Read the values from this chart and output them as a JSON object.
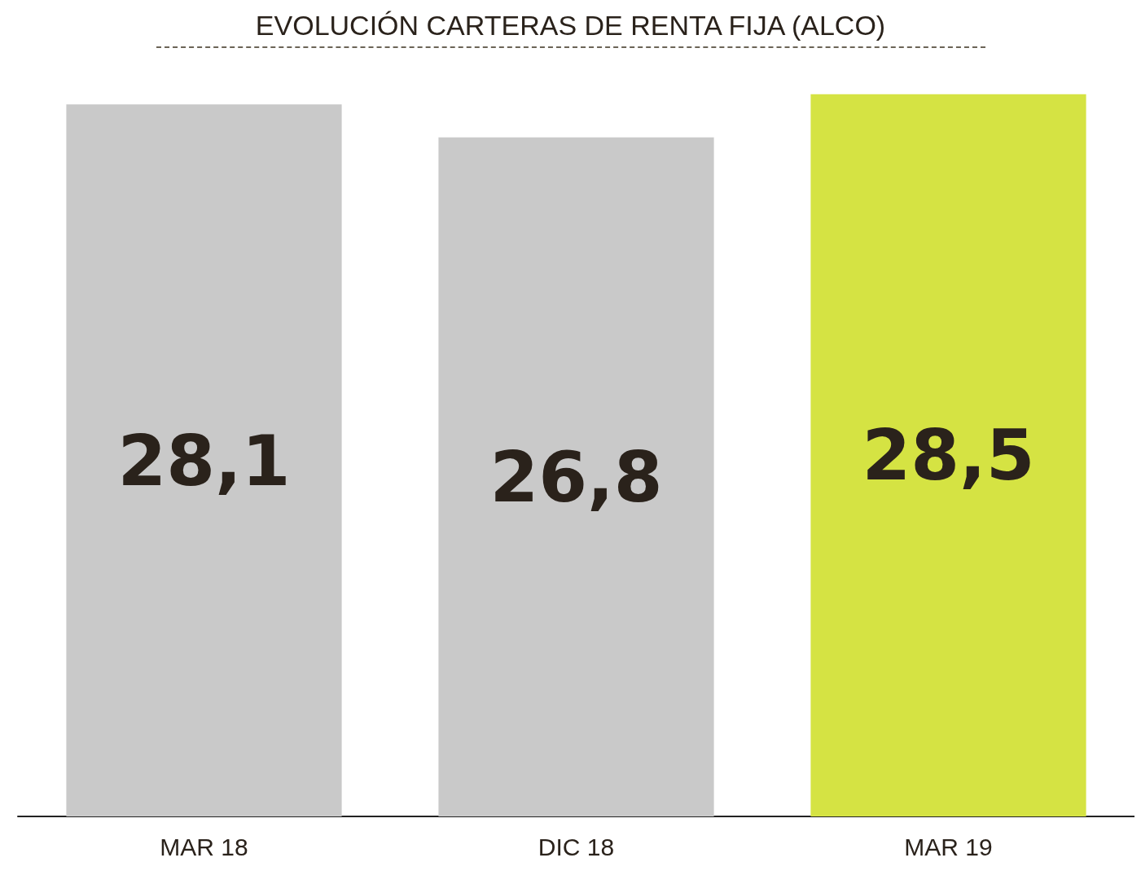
{
  "chart_data": {
    "type": "bar",
    "title": "EVOLUCIÓN CARTERAS DE RENTA FIJA (ALCO)",
    "categories": [
      "MAR 18",
      "DIC 18",
      "MAR 19"
    ],
    "values": [
      28.1,
      26.8,
      28.5
    ],
    "colors": [
      "#c9c9c9",
      "#c9c9c9",
      "#d5e343"
    ],
    "value_labels": [
      "28,1",
      "26,8",
      "28,5"
    ],
    "tick_labels": "x",
    "grid": false
  }
}
